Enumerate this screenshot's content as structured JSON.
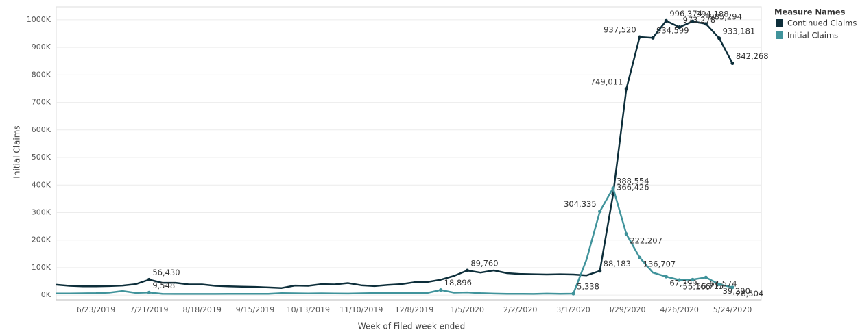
{
  "chart_data": {
    "type": "line",
    "x_label": "Week of Filed week ended",
    "y_label": "Initial Claims",
    "legend_title": "Measure Names",
    "legend": "right",
    "grid": true,
    "categories": [
      null,
      null,
      null,
      "6/23/2019",
      null,
      null,
      null,
      "7/21/2019",
      null,
      null,
      null,
      "8/18/2019",
      null,
      null,
      null,
      "9/15/2019",
      null,
      null,
      null,
      "10/13/2019",
      null,
      null,
      null,
      "11/10/2019",
      null,
      null,
      null,
      "12/8/2019",
      null,
      null,
      null,
      "1/5/2020",
      null,
      null,
      null,
      "2/2/2020",
      null,
      null,
      null,
      "3/1/2020",
      null,
      null,
      null,
      "3/29/2020",
      null,
      null,
      null,
      "4/26/2020",
      null,
      null,
      null,
      "5/24/2020"
    ],
    "ylim": [
      -17000,
      1047000
    ],
    "yticks": [
      {
        "value": 0,
        "label": "0K"
      },
      {
        "value": 100000,
        "label": "100K"
      },
      {
        "value": 200000,
        "label": "200K"
      },
      {
        "value": 300000,
        "label": "300K"
      },
      {
        "value": 400000,
        "label": "400K"
      },
      {
        "value": 500000,
        "label": "500K"
      },
      {
        "value": 600000,
        "label": "600K"
      },
      {
        "value": 700000,
        "label": "700K"
      },
      {
        "value": 800000,
        "label": "800K"
      },
      {
        "value": 900000,
        "label": "900K"
      },
      {
        "value": 1000000,
        "label": "1000K"
      }
    ],
    "series": [
      {
        "name": "Continued Claims",
        "color": "#0d2e3a",
        "values": [
          38000,
          34000,
          32000,
          32000,
          33000,
          35000,
          40000,
          56430,
          45000,
          45000,
          39000,
          39000,
          34000,
          32000,
          31000,
          30000,
          28000,
          26000,
          35000,
          34000,
          40000,
          39000,
          44000,
          36000,
          33000,
          37000,
          40000,
          47000,
          48000,
          56000,
          70000,
          89760,
          82000,
          90000,
          80000,
          77000,
          76000,
          75000,
          76000,
          75000,
          72000,
          88183,
          366426,
          749011,
          937520,
          934599,
          996374,
          973278,
          994188,
          985294,
          933181,
          842268
        ],
        "value_labels": [
          null,
          null,
          null,
          null,
          null,
          null,
          null,
          "56,430",
          null,
          null,
          null,
          null,
          null,
          null,
          null,
          null,
          null,
          null,
          null,
          null,
          null,
          null,
          null,
          null,
          null,
          null,
          null,
          null,
          null,
          null,
          null,
          "89,760",
          null,
          null,
          null,
          null,
          null,
          null,
          null,
          null,
          null,
          "88,183",
          "366,426",
          "749,011",
          "937,520",
          "934,599",
          "996,374",
          "973,278",
          "994,188",
          "985,294",
          "933,181",
          "842,268"
        ]
      },
      {
        "name": "Initial Claims",
        "color": "#40939b",
        "values": [
          6000,
          6000,
          6500,
          7000,
          9000,
          15000,
          8000,
          9548,
          5000,
          4500,
          4500,
          4500,
          4500,
          5000,
          5000,
          5000,
          5000,
          7000,
          6500,
          6000,
          6500,
          6000,
          5500,
          6500,
          7500,
          7500,
          7000,
          8000,
          8000,
          18896,
          9000,
          10000,
          7000,
          5500,
          5000,
          5000,
          4500,
          5500,
          5000,
          5338,
          130000,
          304335,
          388554,
          222207,
          136707,
          82000,
          67399,
          55166,
          56715,
          64574,
          39290,
          28504
        ],
        "value_labels": [
          null,
          null,
          null,
          null,
          null,
          null,
          null,
          "9,548",
          null,
          null,
          null,
          null,
          null,
          null,
          null,
          null,
          null,
          null,
          null,
          null,
          null,
          null,
          null,
          null,
          null,
          null,
          null,
          null,
          null,
          "18,896",
          null,
          null,
          null,
          null,
          null,
          null,
          null,
          null,
          null,
          "5,338",
          null,
          "304,335",
          "388,554",
          "222,207",
          "136,707",
          null,
          "67,399",
          "55,166",
          "56,715",
          "64,574",
          "39,290",
          "28,504"
        ]
      }
    ]
  }
}
